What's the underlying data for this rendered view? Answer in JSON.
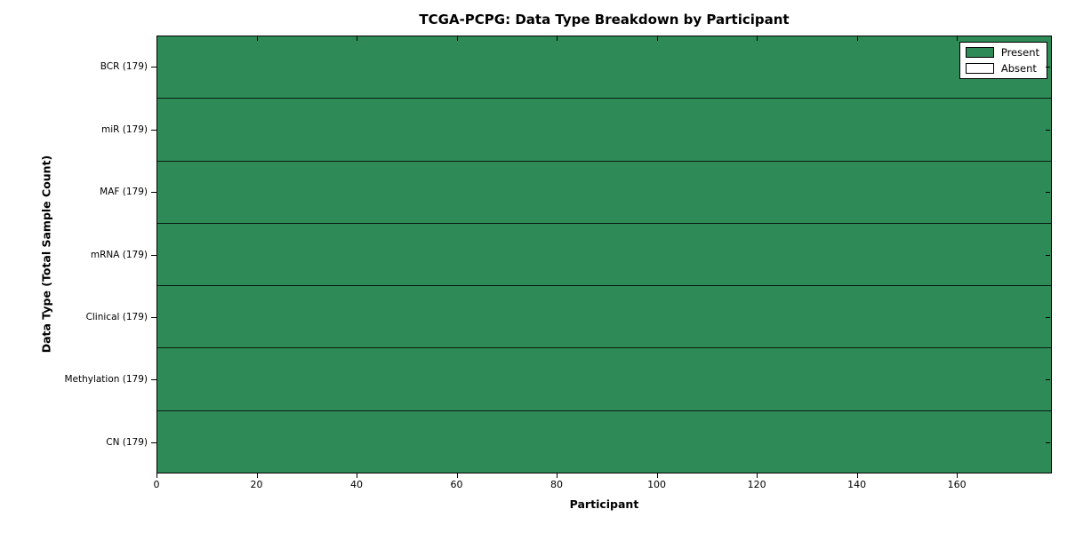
{
  "title": "TCGA-PCPG: Data Type Breakdown by Participant",
  "axes": {
    "x_label": "Participant",
    "y_label": "Data Type (Total Sample Count)",
    "x_ticks": [
      0,
      20,
      40,
      60,
      80,
      100,
      120,
      140,
      160
    ],
    "x_max": 179
  },
  "legend": {
    "items": [
      {
        "label": "Present",
        "color": "#2e8b57"
      },
      {
        "label": "Absent",
        "color": "#ffffff"
      }
    ]
  },
  "colors": {
    "present": "#2e8b57",
    "absent": "#ffffff",
    "cell_edge": "rgba(0,0,0,0.55)",
    "row_edge": "rgba(0,0,0,0.8)",
    "axis": "#000000"
  },
  "chart_data": {
    "type": "heatmap",
    "title": "TCGA-PCPG: Data Type Breakdown by Participant",
    "xlabel": "Participant",
    "ylabel": "Data Type (Total Sample Count)",
    "x_range": [
      0,
      179
    ],
    "x_tick_labels": [
      "0",
      "20",
      "40",
      "60",
      "80",
      "100",
      "120",
      "140",
      "160"
    ],
    "participants_total": 179,
    "legend_position": "upper right",
    "grid": false,
    "rows": [
      {
        "label": "BCR (179)",
        "data_type": "BCR",
        "total_samples": 179,
        "present_count": 179,
        "absent_count": 0
      },
      {
        "label": "miR (179)",
        "data_type": "miR",
        "total_samples": 179,
        "present_count": 179,
        "absent_count": 0
      },
      {
        "label": "MAF (179)",
        "data_type": "MAF",
        "total_samples": 179,
        "present_count": 179,
        "absent_count": 0
      },
      {
        "label": "mRNA (179)",
        "data_type": "mRNA",
        "total_samples": 179,
        "present_count": 179,
        "absent_count": 0
      },
      {
        "label": "Clinical (179)",
        "data_type": "Clinical",
        "total_samples": 179,
        "present_count": 179,
        "absent_count": 0
      },
      {
        "label": "Methylation (179)",
        "data_type": "Methylation",
        "total_samples": 179,
        "present_count": 179,
        "absent_count": 0
      },
      {
        "label": "CN (179)",
        "data_type": "CN",
        "total_samples": 179,
        "present_count": 179,
        "absent_count": 0
      }
    ],
    "legend": [
      {
        "label": "Present",
        "color": "#2e8b57"
      },
      {
        "label": "Absent",
        "color": "#ffffff"
      }
    ]
  }
}
